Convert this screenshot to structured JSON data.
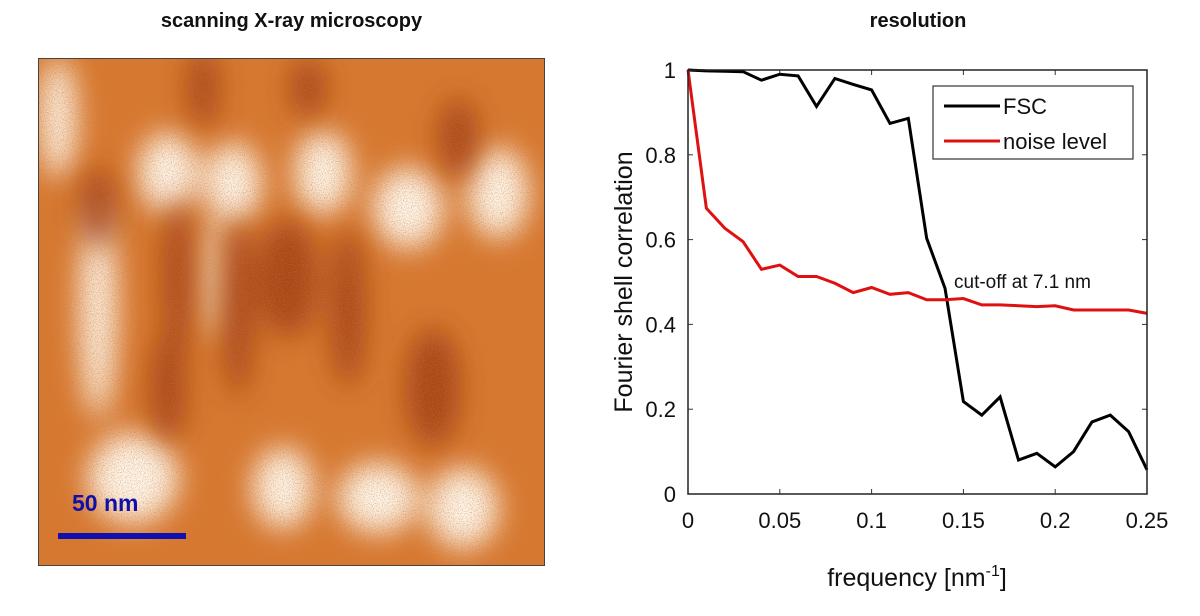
{
  "left_panel": {
    "title": "scanning X-ray microscopy",
    "scale_bar_label": "50 nm",
    "colors": {
      "base": "#d9782f",
      "dark": "#9e3a0a",
      "light": "#fff6ea",
      "scale_bar": "#1010b0"
    }
  },
  "chart_data": {
    "type": "line",
    "title": "resolution",
    "xlabel": "frequency [nm",
    "xlabel_sup": "-1",
    "xlabel_end": "]",
    "ylabel": "Fourier shell correlation",
    "xlim": [
      0,
      0.25
    ],
    "ylim": [
      0,
      1
    ],
    "xticks": [
      "0",
      "0.05",
      "0.1",
      "0.15",
      "0.2",
      "0.25"
    ],
    "yticks": [
      "0",
      "0.2",
      "0.4",
      "0.6",
      "0.8",
      "1"
    ],
    "grid": false,
    "legend_position": "top-right",
    "x": [
      0,
      0.01,
      0.02,
      0.03,
      0.04,
      0.05,
      0.06,
      0.07,
      0.08,
      0.09,
      0.1,
      0.11,
      0.12,
      0.13,
      0.14,
      0.15,
      0.16,
      0.17,
      0.18,
      0.19,
      0.2,
      0.21,
      0.22,
      0.23,
      0.24,
      0.25
    ],
    "series": [
      {
        "name": "FSC",
        "color": "#000000",
        "values": [
          1.0,
          0.998,
          0.997,
          0.996,
          0.976,
          0.99,
          0.986,
          0.914,
          0.98,
          0.966,
          0.953,
          0.874,
          0.886,
          0.603,
          0.485,
          0.218,
          0.186,
          0.229,
          0.08,
          0.096,
          0.064,
          0.1,
          0.17,
          0.186,
          0.147,
          0.057
        ]
      },
      {
        "name": "noise level",
        "color": "#e01010",
        "values": [
          1.0,
          0.674,
          0.627,
          0.595,
          0.53,
          0.54,
          0.513,
          0.513,
          0.497,
          0.475,
          0.487,
          0.471,
          0.475,
          0.458,
          0.458,
          0.461,
          0.446,
          0.446,
          0.444,
          0.442,
          0.444,
          0.434,
          0.434,
          0.434,
          0.434,
          0.426
        ]
      }
    ],
    "annotations": [
      {
        "text": "cut-off at 7.1 nm",
        "x": 0.14,
        "y": 0.47
      }
    ]
  }
}
